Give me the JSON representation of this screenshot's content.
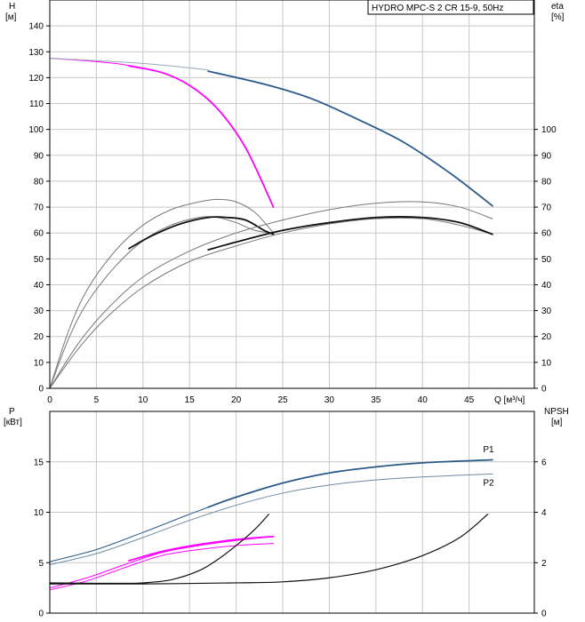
{
  "chart_data": [
    {
      "type": "line",
      "title": "HYDRO MPC-S 2 CR 15-9, 50Hz",
      "y_label": "H",
      "y_unit": "[м]",
      "y_right_label": "eta",
      "y_right_unit": "[%]",
      "x_label": "Q [м³/ч]",
      "xlim": [
        0,
        52
      ],
      "ylim": [
        0,
        150
      ],
      "y_right_lim": [
        0,
        150
      ],
      "x_ticks": [
        "0",
        "5",
        "10",
        "15",
        "20",
        "25",
        "30",
        "35",
        "40",
        "45"
      ],
      "y_ticks": [
        "0",
        "10",
        "20",
        "30",
        "40",
        "50",
        "60",
        "70",
        "80",
        "90",
        "100",
        "110",
        "120",
        "130",
        "140"
      ],
      "y_right_ticks": [
        "0",
        "10",
        "20",
        "30",
        "40",
        "50",
        "60",
        "70",
        "80",
        "90",
        "100"
      ],
      "grid": true,
      "series": [
        {
          "color": "#ff00ff",
          "width": 1,
          "points": [
            [
              0,
              127.5
            ],
            [
              4,
              126.5
            ],
            [
              8,
              125
            ],
            [
              12,
              122
            ],
            [
              15,
              117
            ],
            [
              18,
              108
            ],
            [
              21,
              93
            ],
            [
              24,
              70
            ]
          ]
        },
        {
          "color": "#ff00ff",
          "width": 1.8,
          "points": [
            [
              8.5,
              124.5
            ],
            [
              12,
              122
            ],
            [
              15,
              117
            ],
            [
              18,
              108
            ],
            [
              21,
              93
            ],
            [
              24,
              70
            ]
          ]
        },
        {
          "color": "#9aa8b8",
          "width": 1,
          "points": [
            [
              0,
              127.5
            ],
            [
              10,
              125.5
            ],
            [
              17,
              123
            ]
          ]
        },
        {
          "color": "#2b5a8a",
          "width": 1.8,
          "points": [
            [
              17,
              122.5
            ],
            [
              23,
              117.5
            ],
            [
              28,
              112
            ],
            [
              33,
              104
            ],
            [
              38,
              95
            ],
            [
              43,
              83
            ],
            [
              47.5,
              70.5
            ]
          ]
        },
        {
          "color": "#777777",
          "width": 1,
          "points": [
            [
              0,
              0
            ],
            [
              2,
              22
            ],
            [
              4,
              38
            ],
            [
              7,
              53
            ],
            [
              10,
              63
            ],
            [
              13,
              69
            ],
            [
              16,
              72
            ],
            [
              18,
              73
            ],
            [
              20,
              72
            ],
            [
              22,
              68
            ],
            [
              24,
              60
            ]
          ]
        },
        {
          "color": "#777777",
          "width": 1,
          "points": [
            [
              0,
              0
            ],
            [
              2,
              19
            ],
            [
              4,
              33
            ],
            [
              7,
              47
            ],
            [
              10,
              57
            ],
            [
              13,
              63
            ],
            [
              16,
              66
            ],
            [
              18,
              66
            ],
            [
              20,
              64
            ],
            [
              22,
              61
            ],
            [
              24,
              60
            ]
          ]
        },
        {
          "color": "#111111",
          "width": 1.8,
          "points": [
            [
              8.5,
              54
            ],
            [
              11,
              59
            ],
            [
              14,
              63.5
            ],
            [
              17,
              66
            ],
            [
              19,
              66
            ],
            [
              21,
              65
            ],
            [
              23,
              61
            ],
            [
              24,
              59.5
            ]
          ]
        },
        {
          "color": "#777777",
          "width": 1,
          "points": [
            [
              0,
              0
            ],
            [
              3,
              17
            ],
            [
              6,
              30
            ],
            [
              10,
              43
            ],
            [
              15,
              53
            ],
            [
              20,
              60
            ],
            [
              25,
              65
            ],
            [
              30,
              69
            ],
            [
              35,
              71.5
            ],
            [
              40,
              72
            ],
            [
              44,
              70
            ],
            [
              47.5,
              65.5
            ]
          ]
        },
        {
          "color": "#777777",
          "width": 1,
          "points": [
            [
              0,
              0
            ],
            [
              3,
              15
            ],
            [
              6,
              27
            ],
            [
              10,
              39
            ],
            [
              15,
              49
            ],
            [
              20,
              55
            ],
            [
              25,
              60
            ],
            [
              30,
              63.5
            ],
            [
              35,
              65.5
            ],
            [
              40,
              65.5
            ],
            [
              44,
              63
            ],
            [
              47.5,
              59.5
            ]
          ]
        },
        {
          "color": "#111111",
          "width": 1.8,
          "points": [
            [
              17,
              53.5
            ],
            [
              20,
              56.5
            ],
            [
              25,
              61
            ],
            [
              30,
              64
            ],
            [
              35,
              66
            ],
            [
              40,
              66
            ],
            [
              44,
              64
            ],
            [
              47.5,
              59.5
            ]
          ]
        }
      ]
    },
    {
      "type": "line",
      "y_label": "P",
      "y_unit": "[кВт]",
      "y_right_label": "NPSH",
      "y_right_unit": "[м]",
      "xlim": [
        0,
        52
      ],
      "ylim": [
        0,
        20
      ],
      "y_right_lim": [
        0,
        8
      ],
      "y_ticks": [
        "0",
        "5",
        "10",
        "15"
      ],
      "y_right_ticks": [
        "0",
        "2",
        "4",
        "6"
      ],
      "grid": true,
      "series": [
        {
          "name": "P1",
          "color": "#2b5a8a",
          "width": 1,
          "points": [
            [
              0,
              5.1
            ],
            [
              5,
              6.3
            ],
            [
              10,
              8
            ],
            [
              15,
              9.8
            ],
            [
              20,
              11.5
            ],
            [
              25,
              12.9
            ],
            [
              30,
              13.9
            ],
            [
              35,
              14.5
            ],
            [
              40,
              14.9
            ],
            [
              47.5,
              15.2
            ]
          ]
        },
        {
          "color": "#2b5a8a",
          "width": 1.8,
          "points": [
            [
              17,
              10.5
            ],
            [
              20,
              11.5
            ],
            [
              25,
              12.9
            ],
            [
              30,
              13.9
            ],
            [
              35,
              14.5
            ],
            [
              40,
              14.9
            ],
            [
              47.5,
              15.2
            ]
          ]
        },
        {
          "name": "P2",
          "color": "#6f8aa6",
          "width": 1,
          "points": [
            [
              0,
              4.8
            ],
            [
              5,
              5.9
            ],
            [
              10,
              7.5
            ],
            [
              15,
              9.2
            ],
            [
              20,
              10.7
            ],
            [
              25,
              11.9
            ],
            [
              30,
              12.7
            ],
            [
              35,
              13.2
            ],
            [
              40,
              13.5
            ],
            [
              47.5,
              13.8
            ]
          ]
        },
        {
          "color": "#ff00ff",
          "width": 1,
          "points": [
            [
              0,
              2.5
            ],
            [
              4,
              3.5
            ],
            [
              8,
              4.8
            ],
            [
              12,
              6
            ],
            [
              16,
              6.7
            ],
            [
              20,
              7.2
            ],
            [
              24,
              7.6
            ]
          ]
        },
        {
          "color": "#ff00ff",
          "width": 1.8,
          "points": [
            [
              8.5,
              5.2
            ],
            [
              12,
              6.1
            ],
            [
              16,
              6.8
            ],
            [
              20,
              7.3
            ],
            [
              24,
              7.6
            ]
          ]
        },
        {
          "color": "#ff00ff",
          "width": 1,
          "points": [
            [
              0,
              2.3
            ],
            [
              4,
              3.2
            ],
            [
              8,
              4.5
            ],
            [
              12,
              5.7
            ],
            [
              16,
              6.3
            ],
            [
              20,
              6.7
            ],
            [
              24,
              6.9
            ]
          ]
        },
        {
          "color": "#111111",
          "width": 1.2,
          "points": [
            [
              0,
              3
            ],
            [
              5,
              2.95
            ],
            [
              8,
              2.95
            ],
            [
              10,
              3
            ],
            [
              13,
              3.3
            ],
            [
              16,
              4.2
            ],
            [
              18,
              5.3
            ],
            [
              20,
              6.7
            ],
            [
              22,
              8.3
            ],
            [
              23.5,
              9.8
            ]
          ]
        },
        {
          "color": "#111111",
          "width": 1.2,
          "points": [
            [
              0,
              2.9
            ],
            [
              10,
              2.9
            ],
            [
              20,
              3
            ],
            [
              25,
              3.1
            ],
            [
              30,
              3.5
            ],
            [
              35,
              4.3
            ],
            [
              40,
              5.7
            ],
            [
              44,
              7.5
            ],
            [
              47,
              9.8
            ]
          ]
        }
      ],
      "labels": [
        {
          "text": "P1",
          "color": "#2b5a8a",
          "at": [
            46.5,
            16.3
          ]
        },
        {
          "text": "P2",
          "color": "#2b5a8a",
          "at": [
            46.5,
            13.0
          ]
        }
      ]
    }
  ]
}
